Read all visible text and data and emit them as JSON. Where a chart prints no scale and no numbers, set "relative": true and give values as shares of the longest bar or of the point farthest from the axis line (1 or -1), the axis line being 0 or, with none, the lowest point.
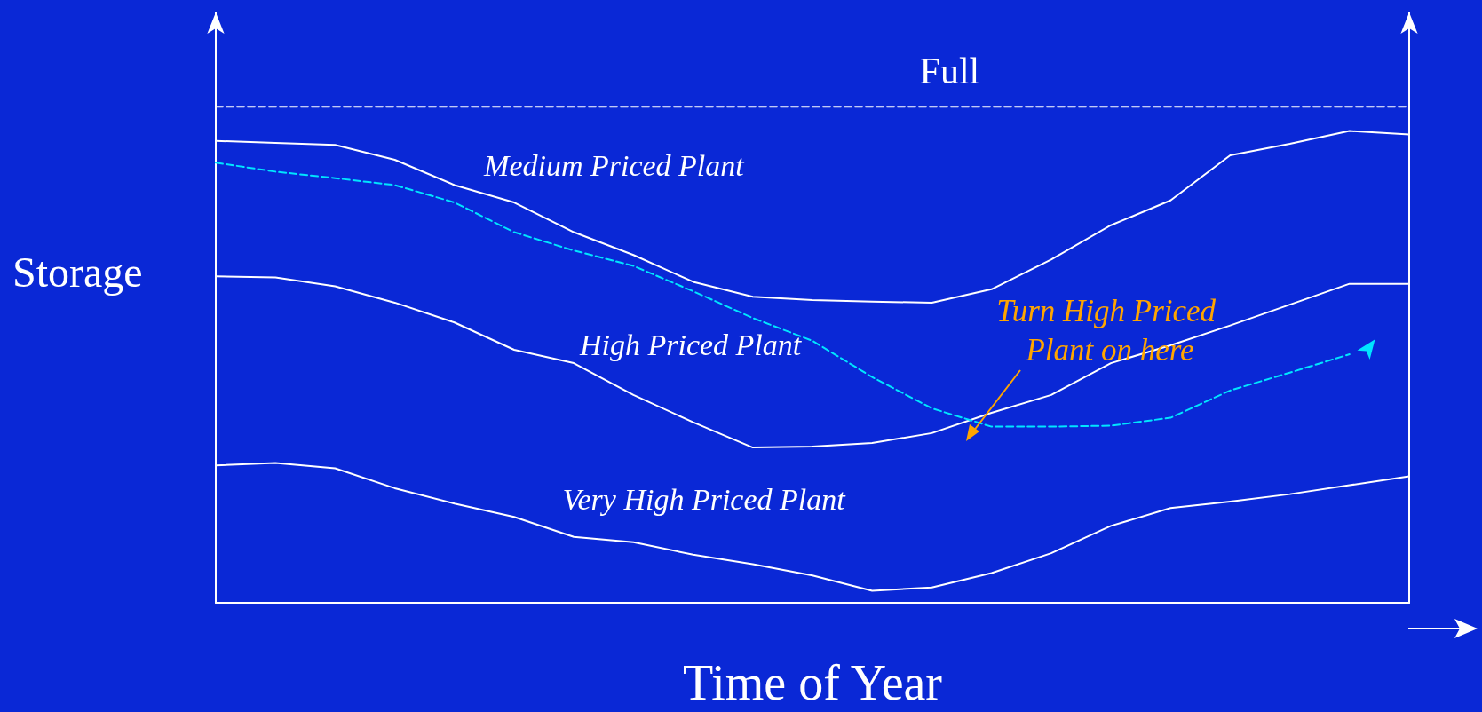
{
  "chart_data": {
    "type": "line",
    "relative": true,
    "xlabel": "Time of Year",
    "ylabel": "Storage",
    "legend": false,
    "grid": false,
    "marker": "none",
    "categories": [
      null,
      null,
      null,
      null,
      null,
      null,
      null,
      null,
      null,
      null,
      null,
      null,
      null,
      null,
      null,
      null,
      null,
      null,
      null,
      null,
      null
    ],
    "series": [
      {
        "name": "Full",
        "color": "#ffffff",
        "line_style": "dashed",
        "values": [
          1,
          1,
          1,
          1,
          1,
          1,
          1,
          1,
          1,
          1,
          1,
          1,
          1,
          1,
          1,
          1,
          1,
          1,
          1,
          1,
          1
        ]
      },
      {
        "name": "Medium Priced Plant",
        "color": "#ffffff",
        "line_style": "solid",
        "values": [
          0.931,
          0.927,
          0.923,
          0.893,
          0.842,
          0.807,
          0.747,
          0.701,
          0.647,
          0.617,
          0.61,
          0.607,
          0.605,
          0.632,
          0.692,
          0.761,
          0.811,
          0.902,
          0.925,
          0.951,
          0.944
        ]
      },
      {
        "name": "High Priced Plant",
        "color": "#ffffff",
        "line_style": "solid",
        "values": [
          0.658,
          0.656,
          0.638,
          0.605,
          0.565,
          0.51,
          0.483,
          0.419,
          0.364,
          0.313,
          0.315,
          0.322,
          0.342,
          0.383,
          0.419,
          0.483,
          0.519,
          0.559,
          0.601,
          0.643,
          0.643
        ]
      },
      {
        "name": "Very High Priced Plant",
        "color": "#ffffff",
        "line_style": "solid",
        "values": [
          0.277,
          0.282,
          0.271,
          0.231,
          0.2,
          0.173,
          0.133,
          0.122,
          0.097,
          0.078,
          0.055,
          0.024,
          0.031,
          0.06,
          0.1,
          0.155,
          0.191,
          0.204,
          0.219,
          0.237,
          0.255
        ]
      },
      {
        "color": "#00e5ff",
        "line_style": "dashed",
        "values": [
          0.887,
          0.869,
          0.856,
          0.842,
          0.807,
          0.747,
          0.71,
          0.679,
          0.628,
          0.574,
          0.528,
          0.455,
          0.392,
          0.355,
          0.355,
          0.357,
          0.373,
          0.428,
          0.464,
          0.501,
          null
        ]
      }
    ],
    "annotations": [
      "Turn High Priced Plant on here"
    ]
  }
}
